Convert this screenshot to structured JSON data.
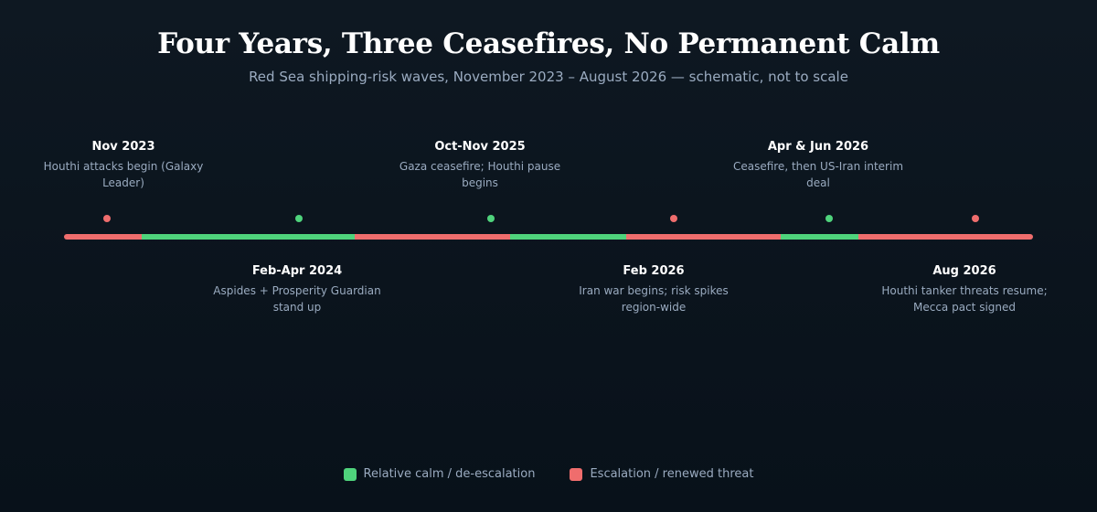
{
  "title": "Four Years, Three Ceasefires, No Permanent Calm",
  "subtitle": "Red Sea shipping-risk waves, November 2023 – August 2026 — schematic, not to scale",
  "colors": {
    "calm": "#4fd37c",
    "escalation": "#ef6d6d"
  },
  "phases": [
    {
      "state": "escalation"
    },
    {
      "state": "calm"
    },
    {
      "state": "escalation"
    },
    {
      "state": "calm"
    },
    {
      "state": "escalation"
    },
    {
      "state": "calm"
    },
    {
      "state": "escalation"
    }
  ],
  "events": [
    {
      "date": "Nov 2023",
      "desc": "Houthi attacks begin (Galaxy Leader)",
      "state": "escalation"
    },
    {
      "date": "Feb-Apr 2024",
      "desc": "Aspides + Prosperity Guardian stand up",
      "state": "calm"
    },
    {
      "date": "Oct-Nov 2025",
      "desc": "Gaza ceasefire; Houthi pause begins",
      "state": "calm"
    },
    {
      "date": "Feb 2026",
      "desc": "Iran war begins; risk spikes region-wide",
      "state": "escalation"
    },
    {
      "date": "Apr & Jun 2026",
      "desc": "Ceasefire, then US-Iran interim deal",
      "state": "calm"
    },
    {
      "date": "Aug 2026",
      "desc": "Houthi tanker threats resume; Mecca pact signed",
      "state": "escalation"
    }
  ],
  "legend": {
    "calm_label": "Relative calm / de-escalation",
    "escalation_label": "Escalation / renewed threat"
  }
}
